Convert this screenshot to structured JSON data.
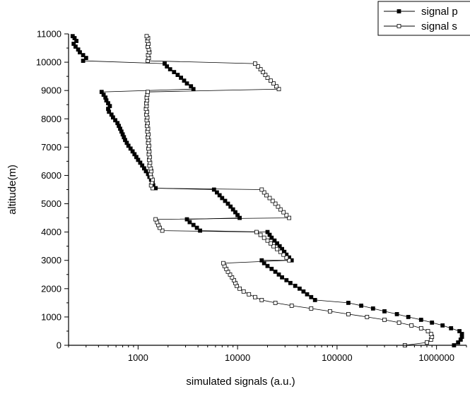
{
  "chart_data": {
    "type": "line",
    "title": "",
    "xlabel": "simulated signals (a.u.)",
    "ylabel": "altitude(m)",
    "x_scale": "log",
    "xlim": [
      200,
      2000000
    ],
    "ylim": [
      0,
      11000
    ],
    "x_ticks": [
      1000,
      10000,
      100000,
      1000000
    ],
    "x_tick_labels": [
      "1000",
      "10000",
      "100000",
      "1000000"
    ],
    "y_ticks": [
      0,
      1000,
      2000,
      3000,
      4000,
      5000,
      6000,
      7000,
      8000,
      9000,
      10000,
      11000
    ],
    "y_tick_labels": [
      "0",
      "1000",
      "2000",
      "3000",
      "4000",
      "5000",
      "6000",
      "7000",
      "8000",
      "9000",
      "10000",
      "11000"
    ],
    "grid": false,
    "legend_position": "top-right",
    "series": [
      {
        "name": "signal p",
        "marker": "filled-square",
        "color": "#000000",
        "points": [
          [
            1500000,
            0
          ],
          [
            1650000,
            100
          ],
          [
            1750000,
            200
          ],
          [
            1800000,
            300
          ],
          [
            1800000,
            400
          ],
          [
            1700000,
            500
          ],
          [
            1400000,
            600
          ],
          [
            1150000,
            700
          ],
          [
            900000,
            800
          ],
          [
            700000,
            900
          ],
          [
            520000,
            1000
          ],
          [
            400000,
            1100
          ],
          [
            300000,
            1200
          ],
          [
            230000,
            1300
          ],
          [
            175000,
            1400
          ],
          [
            130000,
            1500
          ],
          [
            60000,
            1600
          ],
          [
            55000,
            1700
          ],
          [
            50000,
            1800
          ],
          [
            46000,
            1900
          ],
          [
            42000,
            2000
          ],
          [
            38000,
            2100
          ],
          [
            34000,
            2200
          ],
          [
            31000,
            2300
          ],
          [
            28000,
            2400
          ],
          [
            26000,
            2500
          ],
          [
            24000,
            2600
          ],
          [
            22000,
            2700
          ],
          [
            20000,
            2800
          ],
          [
            18500,
            2900
          ],
          [
            17500,
            3000
          ],
          [
            35000,
            3000
          ],
          [
            33000,
            3100
          ],
          [
            31000,
            3200
          ],
          [
            29500,
            3300
          ],
          [
            28000,
            3400
          ],
          [
            26500,
            3500
          ],
          [
            25000,
            3600
          ],
          [
            23500,
            3700
          ],
          [
            22000,
            3800
          ],
          [
            21000,
            3900
          ],
          [
            20000,
            4000
          ],
          [
            4200,
            4050
          ],
          [
            3900,
            4150
          ],
          [
            3600,
            4250
          ],
          [
            3300,
            4350
          ],
          [
            3100,
            4450
          ],
          [
            10500,
            4500
          ],
          [
            10000,
            4600
          ],
          [
            9500,
            4700
          ],
          [
            9000,
            4800
          ],
          [
            8500,
            4900
          ],
          [
            8000,
            5000
          ],
          [
            7500,
            5100
          ],
          [
            7000,
            5200
          ],
          [
            6600,
            5300
          ],
          [
            6200,
            5400
          ],
          [
            5800,
            5500
          ],
          [
            1500,
            5550
          ],
          [
            1420,
            5650
          ],
          [
            1400,
            5750
          ],
          [
            1350,
            5850
          ],
          [
            1300,
            5950
          ],
          [
            1260,
            6050
          ],
          [
            1200,
            6150
          ],
          [
            1150,
            6250
          ],
          [
            1100,
            6350
          ],
          [
            1050,
            6450
          ],
          [
            1000,
            6550
          ],
          [
            960,
            6650
          ],
          [
            920,
            6750
          ],
          [
            880,
            6850
          ],
          [
            840,
            6950
          ],
          [
            800,
            7050
          ],
          [
            770,
            7150
          ],
          [
            740,
            7250
          ],
          [
            720,
            7350
          ],
          [
            700,
            7450
          ],
          [
            680,
            7550
          ],
          [
            660,
            7650
          ],
          [
            640,
            7750
          ],
          [
            620,
            7850
          ],
          [
            590,
            7950
          ],
          [
            560,
            8050
          ],
          [
            540,
            8150
          ],
          [
            510,
            8250
          ],
          [
            500,
            8350
          ],
          [
            520,
            8450
          ],
          [
            500,
            8550
          ],
          [
            480,
            8650
          ],
          [
            470,
            8750
          ],
          [
            450,
            8850
          ],
          [
            430,
            8950
          ],
          [
            3600,
            9050
          ],
          [
            3400,
            9150
          ],
          [
            3100,
            9250
          ],
          [
            2900,
            9350
          ],
          [
            2700,
            9450
          ],
          [
            2500,
            9550
          ],
          [
            2300,
            9650
          ],
          [
            2100,
            9750
          ],
          [
            1950,
            9850
          ],
          [
            1850,
            9950
          ],
          [
            280,
            10050
          ],
          [
            300,
            10150
          ],
          [
            280,
            10250
          ],
          [
            260,
            10350
          ],
          [
            250,
            10450
          ],
          [
            235,
            10550
          ],
          [
            225,
            10650
          ],
          [
            240,
            10750
          ],
          [
            230,
            10850
          ],
          [
            220,
            10920
          ]
        ]
      },
      {
        "name": "signal s",
        "marker": "open-square",
        "color": "#000000",
        "points": [
          [
            480000,
            0
          ],
          [
            800000,
            100
          ],
          [
            880000,
            200
          ],
          [
            900000,
            300
          ],
          [
            880000,
            400
          ],
          [
            820000,
            500
          ],
          [
            700000,
            600
          ],
          [
            560000,
            700
          ],
          [
            420000,
            800
          ],
          [
            300000,
            900
          ],
          [
            200000,
            1000
          ],
          [
            130000,
            1100
          ],
          [
            85000,
            1200
          ],
          [
            55000,
            1300
          ],
          [
            35000,
            1400
          ],
          [
            24000,
            1500
          ],
          [
            17500,
            1600
          ],
          [
            15000,
            1700
          ],
          [
            13000,
            1800
          ],
          [
            11500,
            1900
          ],
          [
            10500,
            2000
          ],
          [
            9800,
            2100
          ],
          [
            9500,
            2200
          ],
          [
            9200,
            2300
          ],
          [
            8800,
            2400
          ],
          [
            8400,
            2500
          ],
          [
            8000,
            2600
          ],
          [
            7700,
            2700
          ],
          [
            7400,
            2800
          ],
          [
            7200,
            2900
          ],
          [
            33000,
            3000
          ],
          [
            31000,
            3100
          ],
          [
            29000,
            3200
          ],
          [
            27000,
            3300
          ],
          [
            25000,
            3400
          ],
          [
            23000,
            3500
          ],
          [
            21500,
            3600
          ],
          [
            20000,
            3700
          ],
          [
            18500,
            3800
          ],
          [
            17000,
            3900
          ],
          [
            15500,
            4000
          ],
          [
            1750,
            4050
          ],
          [
            1650,
            4150
          ],
          [
            1600,
            4250
          ],
          [
            1550,
            4350
          ],
          [
            1500,
            4450
          ],
          [
            33000,
            4500
          ],
          [
            31000,
            4600
          ],
          [
            29000,
            4700
          ],
          [
            27000,
            4800
          ],
          [
            25500,
            4900
          ],
          [
            24000,
            5000
          ],
          [
            22500,
            5100
          ],
          [
            21000,
            5200
          ],
          [
            19500,
            5300
          ],
          [
            18500,
            5400
          ],
          [
            17500,
            5500
          ],
          [
            1400,
            5550
          ],
          [
            1350,
            5650
          ],
          [
            1380,
            5750
          ],
          [
            1400,
            5850
          ],
          [
            1350,
            5950
          ],
          [
            1330,
            6050
          ],
          [
            1360,
            6150
          ],
          [
            1340,
            6250
          ],
          [
            1300,
            6350
          ],
          [
            1320,
            6450
          ],
          [
            1290,
            6550
          ],
          [
            1310,
            6650
          ],
          [
            1280,
            6750
          ],
          [
            1300,
            6850
          ],
          [
            1270,
            6950
          ],
          [
            1290,
            7050
          ],
          [
            1260,
            7150
          ],
          [
            1280,
            7250
          ],
          [
            1250,
            7350
          ],
          [
            1270,
            7450
          ],
          [
            1240,
            7550
          ],
          [
            1260,
            7650
          ],
          [
            1230,
            7750
          ],
          [
            1250,
            7850
          ],
          [
            1220,
            7950
          ],
          [
            1240,
            8050
          ],
          [
            1210,
            8150
          ],
          [
            1230,
            8250
          ],
          [
            1200,
            8350
          ],
          [
            1220,
            8450
          ],
          [
            1210,
            8550
          ],
          [
            1230,
            8650
          ],
          [
            1220,
            8750
          ],
          [
            1240,
            8850
          ],
          [
            1250,
            8950
          ],
          [
            26000,
            9050
          ],
          [
            24500,
            9150
          ],
          [
            23000,
            9250
          ],
          [
            21500,
            9350
          ],
          [
            20000,
            9450
          ],
          [
            19000,
            9550
          ],
          [
            18000,
            9650
          ],
          [
            17000,
            9750
          ],
          [
            16000,
            9850
          ],
          [
            15000,
            9950
          ],
          [
            1250,
            10050
          ],
          [
            1280,
            10150
          ],
          [
            1260,
            10250
          ],
          [
            1300,
            10350
          ],
          [
            1280,
            10450
          ],
          [
            1250,
            10550
          ],
          [
            1270,
            10650
          ],
          [
            1240,
            10750
          ],
          [
            1260,
            10850
          ],
          [
            1220,
            10920
          ]
        ]
      }
    ]
  }
}
